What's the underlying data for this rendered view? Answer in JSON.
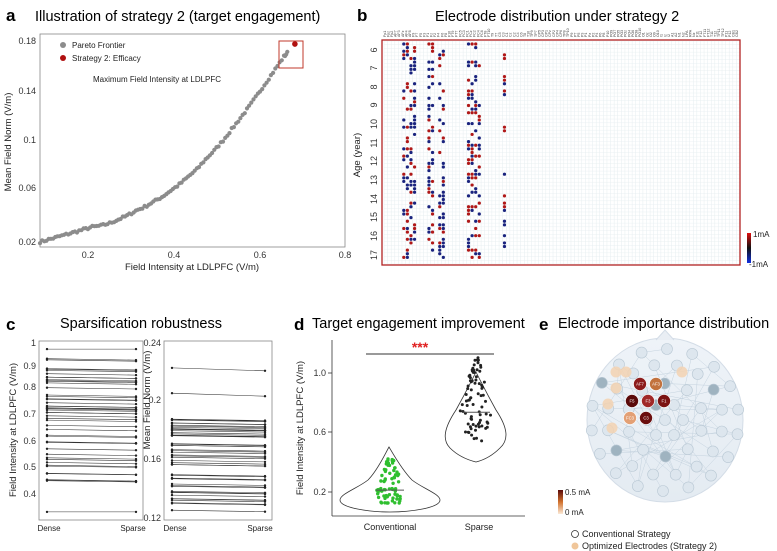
{
  "panels": {
    "a": {
      "letter": "a",
      "title": "Illustration of strategy 2 (target engagement)",
      "xlabel": "Field Intensity at LDLPFC  (V/m)",
      "ylabel": "Mean Field Norm  (V/m)",
      "legend": [
        "Pareto Frontier",
        "Strategy 2: Efficacy"
      ],
      "annotation": "Maximum Field Intensity at LDLPFC",
      "xticks": [
        "0.2",
        "0.4",
        "0.6",
        "0.8"
      ],
      "yticks": [
        "0.02",
        "0.06",
        "0.1",
        "0.14",
        "0.18"
      ]
    },
    "b": {
      "letter": "b",
      "title": "Electrode distribution under strategy 2",
      "ylabel": "Age (year)",
      "yticks": [
        "6",
        "7",
        "8",
        "9",
        "10",
        "11",
        "12",
        "13",
        "14",
        "15",
        "16",
        "17"
      ],
      "colorbar": [
        "1mA",
        "-1mA"
      ],
      "electrode_labels": [
        "Fp1",
        "Fpz",
        "Fp2",
        "AF7",
        "AF3",
        "AFz",
        "AF4",
        "AF8",
        "F9",
        "F7",
        "F5",
        "F3",
        "F1",
        "Fz",
        "F2",
        "F4",
        "F6",
        "F8",
        "F10",
        "FT9",
        "FT7",
        "FC5",
        "FC3",
        "FC1",
        "FCz",
        "FC2",
        "FC4",
        "FC6",
        "FT8",
        "FT10",
        "T9",
        "T7",
        "C5",
        "C3",
        "C1",
        "Cz",
        "C2",
        "C4",
        "C6",
        "T8",
        "T10",
        "TP9",
        "TP7",
        "CP5",
        "CP3",
        "CP1",
        "CPz",
        "CP2",
        "CP4",
        "CP6",
        "TP8",
        "TP10",
        "P9",
        "P7",
        "P5",
        "P3",
        "P1",
        "Pz",
        "P2",
        "P4",
        "P6",
        "P8",
        "P10",
        "PO9",
        "PO7",
        "PO5",
        "PO3",
        "POz",
        "PO4",
        "PO6",
        "PO8",
        "PO10",
        "O1",
        "Oz",
        "O2",
        "O9",
        "O10",
        "I1",
        "Iz",
        "I2",
        "A1",
        "A2",
        "N1",
        "N2",
        "LPA",
        "RPA",
        "Nz",
        "F11",
        "F12",
        "FT11",
        "FT12",
        "T11",
        "T12",
        "TP11",
        "TP12",
        "P11",
        "P12",
        "CB1",
        "CB2"
      ]
    },
    "c": {
      "letter": "c",
      "title": "Sparsification robustness",
      "left_ylabel": "Field Intensity at LDLPFC  (V/m)",
      "right_ylabel": "Mean Field Norm  (V/m)",
      "xticks": [
        "Dense",
        "Sparse"
      ],
      "left_yticks": [
        "0.4",
        "0.5",
        "0.6",
        "0.7",
        "0.8",
        "0.9",
        "1"
      ],
      "right_yticks": [
        "0.12",
        "0.16",
        "0.2",
        "0.24"
      ]
    },
    "d": {
      "letter": "d",
      "title": "Target engagement improvement",
      "ylabel": "Field Intensity at LDLPFC  (V/m)",
      "xticks": [
        "Conventional",
        "Sparse"
      ],
      "yticks": [
        "0.2",
        "0.6",
        "1.0"
      ],
      "significance": "***"
    },
    "e": {
      "letter": "e",
      "title": "Electrode importance distribution",
      "colorbar": [
        "0.5 mA",
        "0 mA"
      ],
      "legend": [
        "Conventional Strategy",
        "Optimized Electrodes (Strategy 2)"
      ],
      "highlight_labels": [
        "AF7",
        "AF3",
        "F5",
        "F3",
        "F1",
        "FC3",
        "C3"
      ]
    }
  },
  "colors": {
    "pareto": "#8c8c8c",
    "efficacy": "#b01010",
    "frame": "#b22222",
    "positive": "#b01818",
    "negative": "#1a237e",
    "violin_conventional": "#2fbf2f",
    "significance": "#e02020"
  },
  "chart_data": [
    {
      "panel": "a",
      "type": "scatter",
      "xlim": [
        0.1,
        0.8
      ],
      "ylim": [
        0.01,
        0.18
      ],
      "series": [
        {
          "name": "Pareto Frontier",
          "x": [
            0.1,
            0.12,
            0.14,
            0.16,
            0.18,
            0.2,
            0.22,
            0.24,
            0.26,
            0.28,
            0.3,
            0.32,
            0.34,
            0.36,
            0.38,
            0.4,
            0.42,
            0.44,
            0.46,
            0.48,
            0.5,
            0.52,
            0.54,
            0.56,
            0.58,
            0.6,
            0.62,
            0.64,
            0.66,
            0.67
          ],
          "y": [
            0.014,
            0.016,
            0.018,
            0.02,
            0.022,
            0.024,
            0.026,
            0.027,
            0.029,
            0.032,
            0.035,
            0.039,
            0.042,
            0.046,
            0.05,
            0.055,
            0.06,
            0.066,
            0.072,
            0.08,
            0.087,
            0.095,
            0.104,
            0.113,
            0.122,
            0.132,
            0.142,
            0.152,
            0.162,
            0.166
          ]
        },
        {
          "name": "Strategy 2: Efficacy",
          "x": [
            0.685
          ],
          "y": [
            0.172
          ]
        }
      ]
    },
    {
      "panel": "b",
      "type": "heatmap",
      "ylim": [
        6,
        17
      ],
      "columns": [
        5,
        6,
        7,
        8,
        12,
        13,
        15,
        16,
        23,
        24,
        25,
        26,
        33
      ]
    },
    {
      "panel": "c",
      "type": "line",
      "categories": [
        "Dense",
        "Sparse"
      ],
      "left_ylim": [
        0.34,
        1.0
      ],
      "right_ylim": [
        0.12,
        0.24
      ]
    },
    {
      "panel": "d",
      "type": "violin",
      "categories": [
        "Conventional",
        "Sparse"
      ],
      "ylim": [
        0.1,
        1.05
      ],
      "medians": [
        0.24,
        0.66
      ]
    }
  ]
}
